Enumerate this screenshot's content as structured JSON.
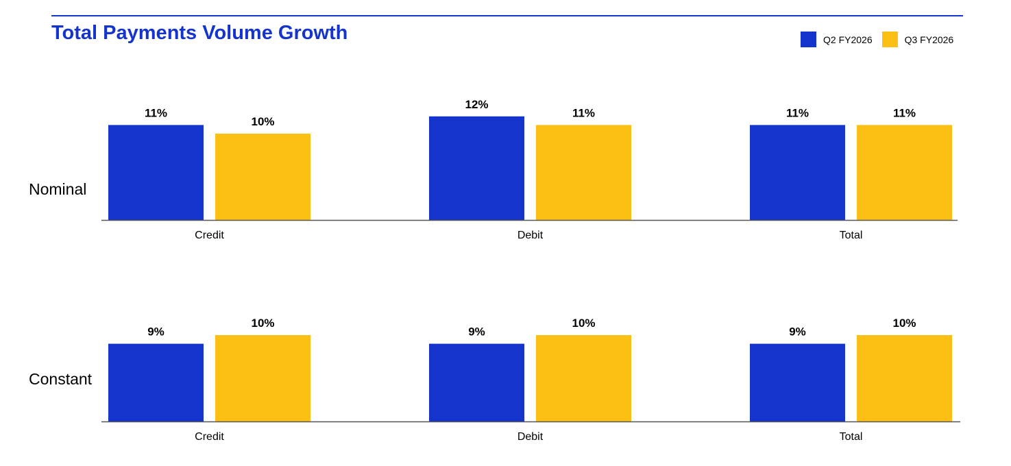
{
  "title": "Total Payments Volume Growth",
  "colors": {
    "accent": "#1534cc",
    "q2": "#1534cc",
    "q3": "#fcc015",
    "axis": "#555555"
  },
  "chart_data": {
    "type": "bar",
    "title": "Total Payments Volume Growth",
    "categories": [
      "Credit",
      "Debit",
      "Total"
    ],
    "series_names": [
      "Q2 FY2026",
      "Q3 FY2026"
    ],
    "legend_position": "top-right",
    "grid": false,
    "value_unit": "%",
    "panels": [
      {
        "label": "Nominal",
        "series": [
          {
            "name": "Q2 FY2026",
            "values": [
              11,
              12,
              11
            ]
          },
          {
            "name": "Q3 FY2026",
            "values": [
              10,
              11,
              11
            ]
          }
        ]
      },
      {
        "label": "Constant",
        "series": [
          {
            "name": "Q2 FY2026",
            "values": [
              9,
              9,
              9
            ]
          },
          {
            "name": "Q3 FY2026",
            "values": [
              10,
              10,
              10
            ]
          }
        ]
      }
    ]
  }
}
